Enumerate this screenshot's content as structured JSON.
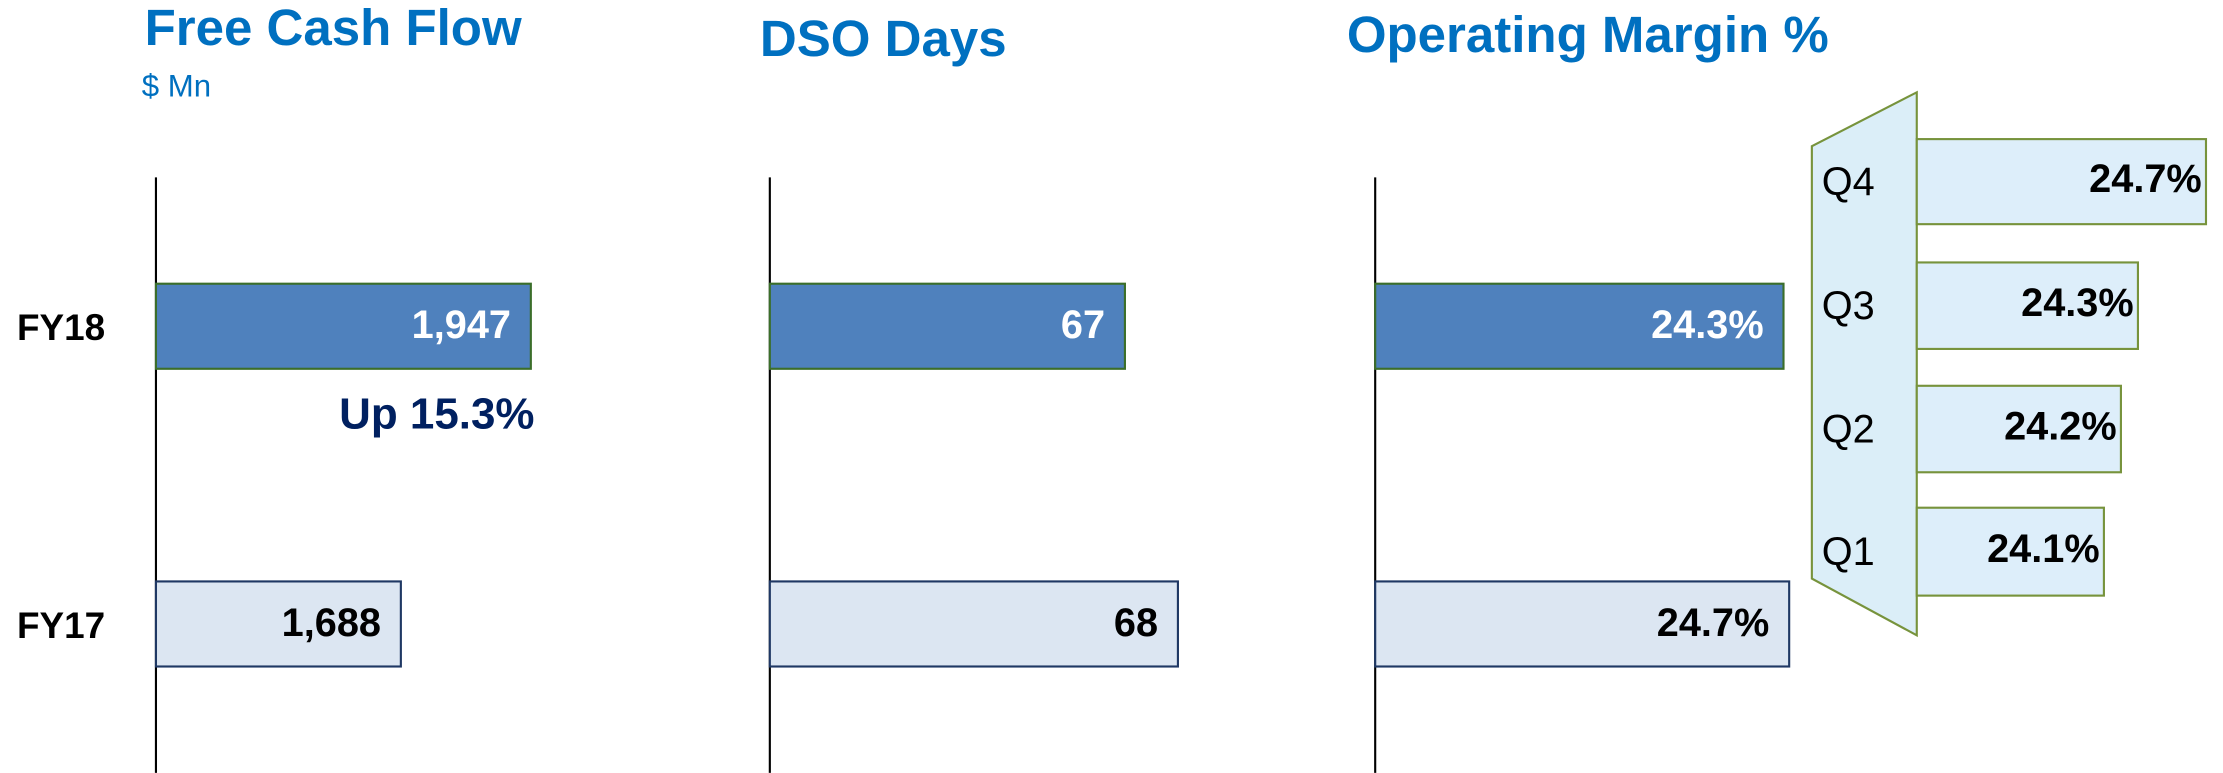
{
  "chart_data": [
    {
      "type": "bar",
      "orientation": "horizontal",
      "title": "Free Cash Flow",
      "subtitle": "$ Mn",
      "categories": [
        "FY18",
        "FY17"
      ],
      "values": [
        1947,
        1688
      ],
      "value_labels": [
        "1,947",
        "1,688"
      ],
      "colors": [
        "#4f81bd",
        "#dce6f2"
      ],
      "xlim": [
        1200,
        2330
      ],
      "annotation": "Up 15.3%"
    },
    {
      "type": "bar",
      "orientation": "horizontal",
      "title": "DSO Days",
      "values": [
        67,
        68
      ],
      "colors": [
        "#4f81bd",
        "#dce6f2"
      ],
      "xlim": [
        60.3,
        71
      ]
    },
    {
      "type": "bar",
      "orientation": "horizontal",
      "title": "Operating Margin %",
      "values": [
        24.3,
        24.7
      ],
      "value_labels": [
        "24.3%",
        "24.7%"
      ],
      "colors": [
        "#4f81bd",
        "#dce6f2"
      ],
      "xlim": [
        -4.5,
        35.5
      ]
    },
    {
      "type": "bar",
      "orientation": "horizontal",
      "categories": [
        "Q4",
        "Q3",
        "Q2",
        "Q1"
      ],
      "values": [
        24.7,
        24.3,
        24.2,
        24.1
      ],
      "value_labels": [
        "24.7%",
        "24.3%",
        "24.2%",
        "24.1%"
      ],
      "color": "#ddeefa",
      "xlim": [
        23.0,
        24.75
      ]
    }
  ]
}
